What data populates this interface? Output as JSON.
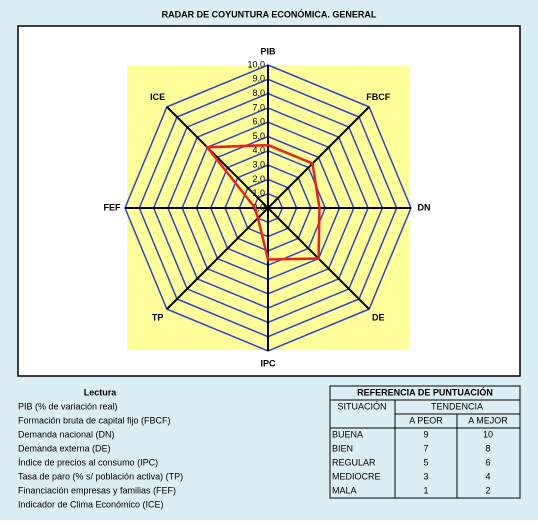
{
  "chart_data": {
    "type": "radar",
    "title": "RADAR DE COYUNTURA ECONÓMICA. GENERAL",
    "categories": [
      "PIB",
      "FBCF",
      "DN",
      "DE",
      "IPC",
      "TP",
      "FEF",
      "ICE"
    ],
    "values": [
      4.4,
      4.4,
      3.6,
      5.0,
      3.6,
      1.0,
      0.9,
      6.0
    ],
    "color": "#e8231d",
    "grid_color": "#3344cc",
    "rlim": [
      0,
      10
    ],
    "rticks": [
      {
        "value": 0,
        "label": "0,0"
      },
      {
        "value": 1,
        "label": "1,0"
      },
      {
        "value": 2,
        "label": "2,0"
      },
      {
        "value": 3,
        "label": "3,0"
      },
      {
        "value": 4,
        "label": "4,0"
      },
      {
        "value": 5,
        "label": "5,0"
      },
      {
        "value": 6,
        "label": "6,0"
      },
      {
        "value": 7,
        "label": "7,0"
      },
      {
        "value": 8,
        "label": "8,0"
      },
      {
        "value": 9,
        "label": "9,0"
      },
      {
        "value": 10,
        "label": "10,0"
      }
    ]
  },
  "reading": {
    "title": "Lectura",
    "items": [
      "PIB (% de variación real)",
      "Formación bruta de capital fijo (FBCF)",
      "Demanda nacional (DN)",
      "Demanda externa (DE)",
      "Índice de precios al consumo (IPC)",
      "Tasa de paro (% s/ población activa) (TP)",
      "Financiación empresas y familias (FEF)",
      "Indicador de Clima Económico (ICE)"
    ]
  },
  "score_table": {
    "title": "REFERENCIA DE PUNTUACIÓN",
    "headers": [
      "SITUACIÓN",
      "TENDENCIA"
    ],
    "subheaders": [
      "A PEOR",
      "A MEJOR"
    ],
    "rows": [
      [
        "BUENA",
        9,
        10
      ],
      [
        "BIEN",
        7,
        8
      ],
      [
        "REGULAR",
        5,
        6
      ],
      [
        "MEDIOCRE",
        3,
        4
      ],
      [
        "MALA",
        1,
        2
      ]
    ]
  }
}
